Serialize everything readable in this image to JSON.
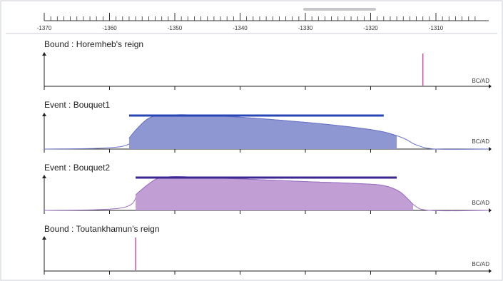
{
  "timeline_axis": {
    "range": [
      -1370,
      -1304
    ],
    "labeled_ticks": [
      -1370,
      -1360,
      -1350,
      -1340,
      -1330,
      -1320,
      -1310
    ],
    "minor_step": 1
  },
  "colors": {
    "frame": "#c9ccd3",
    "bound_line": "#d44f9a",
    "bouquet1_fill": "#8f97d3",
    "bouquet1_curve": "#6a73c6",
    "bouquet1_bar": "#2845b5",
    "bouquet2_fill": "#c19ed4",
    "bouquet2_curve": "#9a6fc2",
    "bouquet2_bar": "#3b2590",
    "scrollbar": "#c8c8cc"
  },
  "chart_data": [
    {
      "type": "line",
      "title": "Bound  :  Horemheb's reign",
      "xlabel": "BC/AD",
      "kind": "bound",
      "bound_date": -1312
    },
    {
      "type": "area",
      "title": "Event : Bouquet1",
      "xlabel": "BC/AD",
      "kind": "event",
      "x": [
        -1380,
        -1358,
        -1356,
        -1354,
        -1352,
        -1348,
        -1340,
        -1330,
        -1322,
        -1318,
        -1315,
        -1313,
        -1310,
        -1300
      ],
      "y": [
        0,
        0.08,
        0.55,
        0.9,
        0.98,
        1.0,
        0.93,
        0.78,
        0.62,
        0.5,
        0.32,
        0.12,
        0,
        0
      ],
      "hpd_interval": [
        -1357,
        -1316
      ],
      "credible_interval": [
        -1357,
        -1318
      ]
    },
    {
      "type": "area",
      "title": "Event : Bouquet2",
      "xlabel": "BC/AD",
      "kind": "event",
      "x": [
        -1380,
        -1358,
        -1355.5,
        -1353,
        -1351,
        -1348,
        -1340,
        -1330,
        -1322,
        -1318,
        -1315.5,
        -1313.5,
        -1311,
        -1300
      ],
      "y": [
        0,
        0.08,
        0.55,
        0.92,
        1.0,
        1.0,
        0.94,
        0.86,
        0.8,
        0.74,
        0.55,
        0.18,
        0,
        0
      ],
      "hpd_interval": [
        -1356,
        -1313.5
      ],
      "credible_interval": [
        -1356,
        -1316
      ]
    },
    {
      "type": "line",
      "title": "Bound  :  Toutankhamun's reign",
      "xlabel": "BC/AD",
      "kind": "bound",
      "bound_date": -1356
    }
  ]
}
